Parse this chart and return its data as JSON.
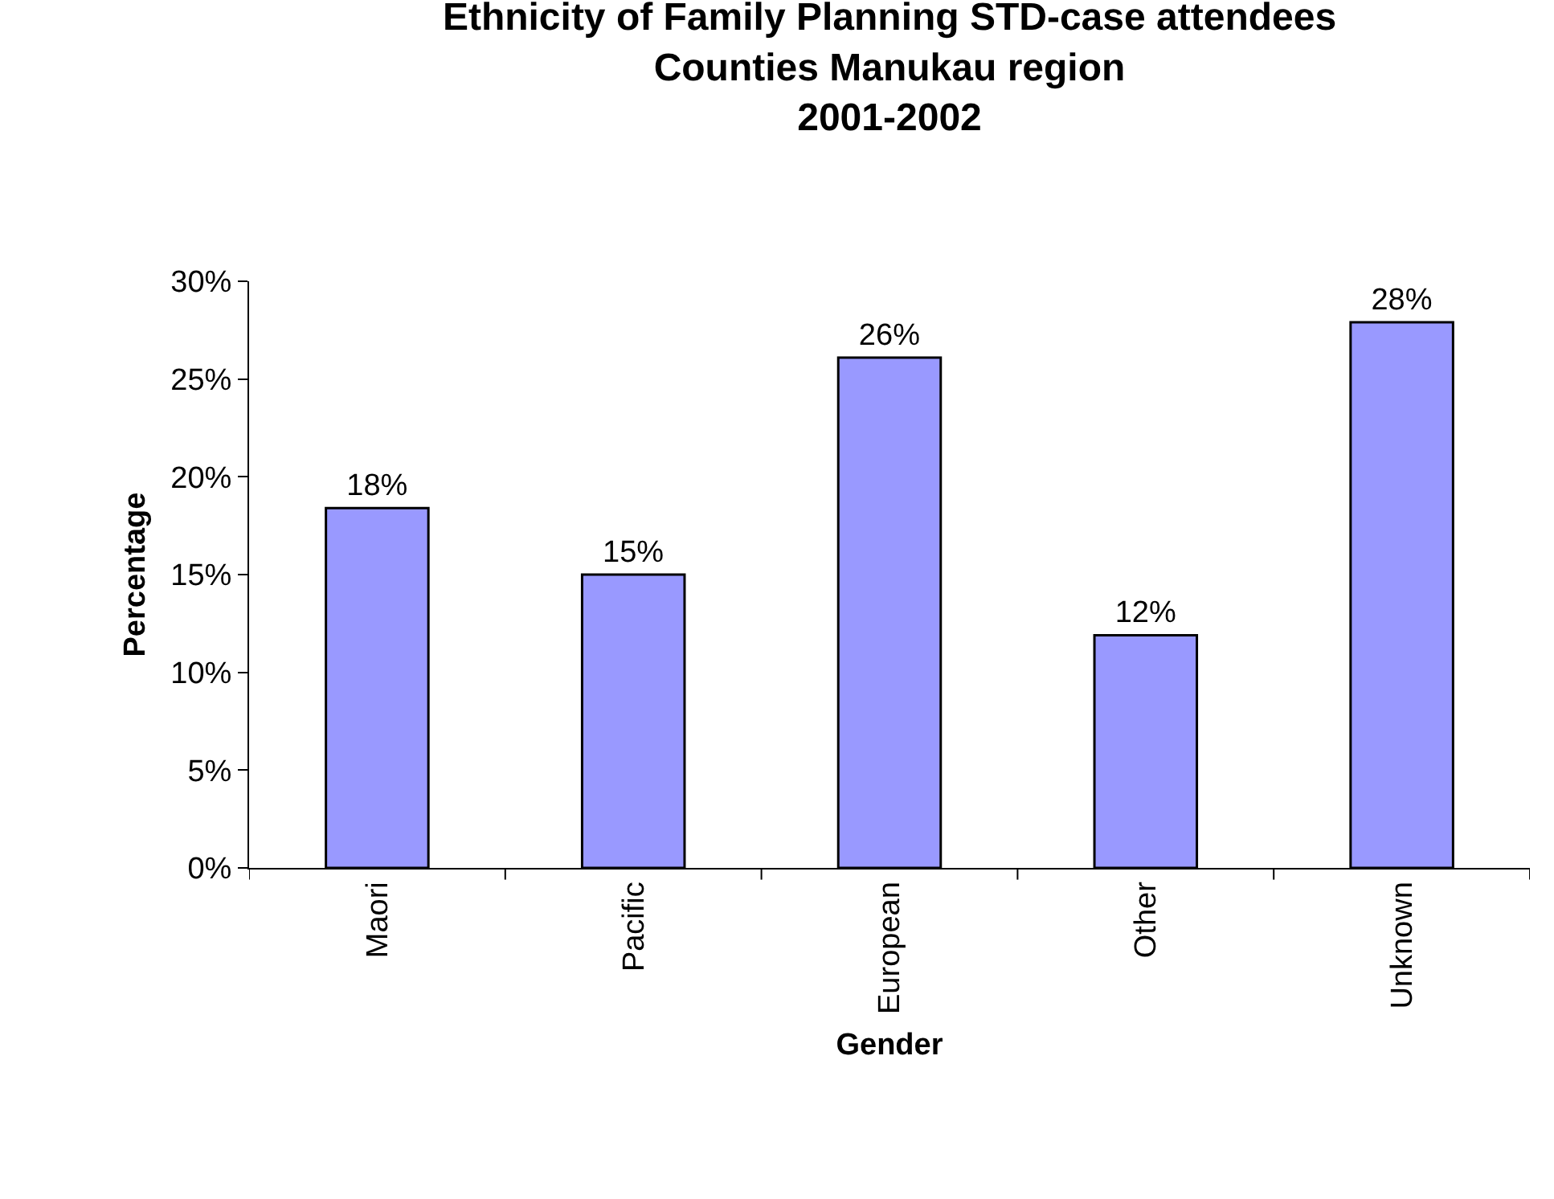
{
  "chart_data": {
    "type": "bar",
    "title": "Ethnicity of Family Planning STD-case attendees\nCounties Manukau region\n2001-2002",
    "xlabel": "Gender",
    "ylabel": "Percentage",
    "categories": [
      "Maori",
      "Pacific",
      "European",
      "Other",
      "Unknown"
    ],
    "values": [
      18.4,
      15.0,
      26.1,
      11.9,
      27.9
    ],
    "value_labels": [
      "18%",
      "15%",
      "26%",
      "12%",
      "28%"
    ],
    "color": "#9999ff",
    "ylim": [
      0,
      30
    ],
    "yticks": [
      {
        "value": 0,
        "label": "0%"
      },
      {
        "value": 5,
        "label": "5%"
      },
      {
        "value": 10,
        "label": "10%"
      },
      {
        "value": 15,
        "label": "15%"
      },
      {
        "value": 20,
        "label": "20%"
      },
      {
        "value": 25,
        "label": "25%"
      },
      {
        "value": 30,
        "label": "30%"
      }
    ],
    "legend": false
  }
}
